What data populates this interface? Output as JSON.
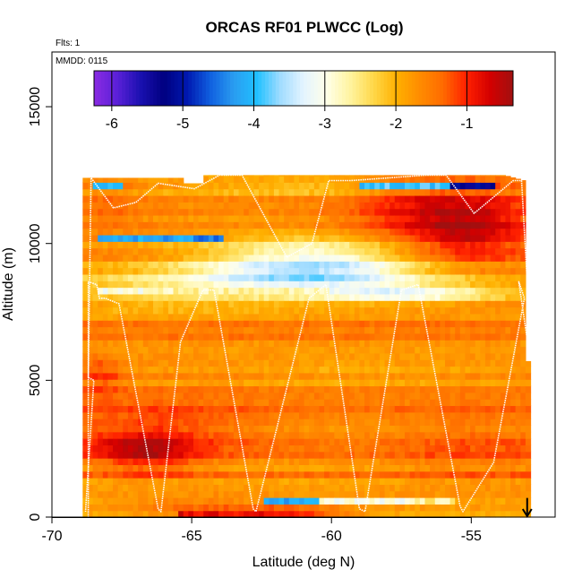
{
  "chart_data": {
    "type": "heatmap",
    "title": "ORCAS RF01 PLWCC (Log)",
    "annotations": [
      "Flts: 1",
      "MMDD: 0115"
    ],
    "xlabel": "Latitude (deg N)",
    "ylabel": "Altitude (m)",
    "xlim": [
      -70,
      -52
    ],
    "ylim": [
      0,
      17000
    ],
    "xticks": [
      -70,
      -65,
      -60,
      -55
    ],
    "xtick_labels": [
      "-70",
      "-65",
      "-60",
      "-55"
    ],
    "yticks": [
      0,
      5000,
      10000,
      15000
    ],
    "ytick_labels": [
      "0",
      "5000",
      "10000",
      "15000"
    ],
    "colorbar": {
      "min": -6.25,
      "max": -0.35,
      "ticks": [
        -6,
        -5,
        -4,
        -3,
        -2,
        -1
      ],
      "tick_labels": [
        "-6",
        "-5",
        "-4",
        "-3",
        "-2",
        "-1"
      ],
      "colors": [
        "#8a2be2",
        "#5a20d8",
        "#1a10b0",
        "#000080",
        "#0018b0",
        "#1060e0",
        "#2a9cf0",
        "#20c0ff",
        "#a0dcff",
        "#e4f4ff",
        "#ffffe8",
        "#fff4a0",
        "#ffd84a",
        "#ffb000",
        "#ff8c00",
        "#ff6a00",
        "#ff2000",
        "#d40000",
        "#a01010"
      ]
    },
    "field": {
      "background_value": -1.65,
      "coverage_top_altitude": [
        [
          -68.9,
          12400
        ],
        [
          -65.3,
          12400
        ],
        [
          -65.3,
          12200
        ],
        [
          -64.6,
          12200
        ],
        [
          -64.6,
          12500
        ],
        [
          -53.8,
          12500
        ],
        [
          -53.1,
          12300
        ],
        [
          -53.0,
          5700
        ],
        [
          -52.8,
          5700
        ],
        [
          -52.8,
          2300
        ],
        [
          -53.3,
          1700
        ],
        [
          -53.3,
          1100
        ],
        [
          -53.1,
          900
        ],
        [
          -53.1,
          0
        ]
      ],
      "coverage_left_altitude": [
        [
          -68.9,
          0
        ],
        [
          -68.9,
          12400
        ]
      ],
      "anomalies": [
        {
          "lat": -56.0,
          "alt": 11000,
          "lat_sigma": 2.2,
          "alt_sigma": 1300,
          "delta": 0.95
        },
        {
          "lat": -54.9,
          "alt": 10300,
          "lat_sigma": 1.3,
          "alt_sigma": 800,
          "delta": 0.45
        },
        {
          "lat": -60.5,
          "alt": 9300,
          "lat_sigma": 3.0,
          "alt_sigma": 650,
          "delta": -1.55
        },
        {
          "lat": -62.0,
          "alt": 8700,
          "lat_sigma": 5.5,
          "alt_sigma": 400,
          "delta": -0.9
        },
        {
          "lat": -57.0,
          "alt": 8150,
          "lat_sigma": 2.5,
          "alt_sigma": 220,
          "delta": -1.3
        },
        {
          "lat": -65.5,
          "alt": 8000,
          "lat_sigma": 3.5,
          "alt_sigma": 380,
          "delta": -0.55
        },
        {
          "lat": -66.7,
          "alt": 2400,
          "lat_sigma": 1.3,
          "alt_sigma": 550,
          "delta": 0.8
        },
        {
          "lat": -66.2,
          "alt": 3200,
          "lat_sigma": 2.8,
          "alt_sigma": 700,
          "delta": 0.45
        },
        {
          "lat": -68.2,
          "alt": 5200,
          "lat_sigma": 0.5,
          "alt_sigma": 500,
          "delta": 0.55
        },
        {
          "lat": -54.8,
          "alt": 2500,
          "lat_sigma": 2.0,
          "alt_sigma": 1000,
          "delta": 0.3
        },
        {
          "lat": -68.0,
          "alt": 11300,
          "lat_sigma": 0.8,
          "alt_sigma": 700,
          "delta": 0.25
        },
        {
          "lat": -60.0,
          "alt": 12100,
          "lat_sigma": 4.0,
          "alt_sigma": 200,
          "delta": -0.6
        },
        {
          "lat": -64.5,
          "alt": 400,
          "lat_sigma": 2.0,
          "alt_sigma": 250,
          "delta": 0.45
        },
        {
          "lat": -61.5,
          "alt": 150,
          "lat_sigma": 1.5,
          "alt_sigma": 150,
          "delta": 0.9
        },
        {
          "lat": -59.0,
          "alt": 5300,
          "lat_sigma": 3.5,
          "alt_sigma": 500,
          "delta": -0.2
        }
      ],
      "streaks": [
        {
          "lat0": -68.3,
          "lat1": -63.8,
          "alt0": 9980,
          "alt1": 10250,
          "value": -4.2,
          "color_taper": 0.6
        },
        {
          "lat0": -68.3,
          "lat1": -66.5,
          "alt0": 8100,
          "alt1": 8350,
          "value": -3.0,
          "color_taper": 0.0
        },
        {
          "lat0": -66.5,
          "lat1": -60.0,
          "alt0": 8100,
          "alt1": 8300,
          "value": -2.7,
          "color_taper": 0.0
        },
        {
          "lat0": -55.8,
          "lat1": -54.2,
          "alt0": 12000,
          "alt1": 12350,
          "value": -5.2,
          "color_taper": 0.0
        },
        {
          "lat0": -59.0,
          "lat1": -55.8,
          "alt0": 12000,
          "alt1": 12300,
          "value": -3.9,
          "color_taper": 0.0
        },
        {
          "lat0": -63.5,
          "lat1": -59.0,
          "alt0": 12150,
          "alt1": 12300,
          "value": -3.3,
          "color_taper": 0.0
        },
        {
          "lat0": -68.6,
          "lat1": -67.5,
          "alt0": 12050,
          "alt1": 12250,
          "value": -4.0,
          "color_taper": 0.0
        },
        {
          "lat0": -62.5,
          "lat1": -60.5,
          "alt0": 420,
          "alt1": 720,
          "value": -4.2,
          "color_taper": 0.0
        },
        {
          "lat0": -60.5,
          "lat1": -57.0,
          "alt0": 380,
          "alt1": 650,
          "value": -3.0,
          "color_taper": 0.0
        },
        {
          "lat0": -57.0,
          "lat1": -55.5,
          "alt0": 380,
          "alt1": 650,
          "value": -2.6,
          "color_taper": 0.0
        },
        {
          "lat0": -65.5,
          "lat1": -62.5,
          "alt0": 0,
          "alt1": 250,
          "value": -0.8,
          "color_taper": 0.0
        }
      ]
    },
    "flight_track": {
      "latitude": [
        -68.7,
        -68.7,
        -68.4,
        -68.3,
        -68.1,
        -67.6,
        -66.2,
        -66.1,
        -65.4,
        -64.6,
        -64.2,
        -62.8,
        -62.7,
        -60.8,
        -60.2,
        -59.0,
        -58.8,
        -57.5,
        -56.9,
        -55.4,
        -55.3,
        -54.2,
        -53.1,
        -53.3,
        -53.3,
        -52.9,
        -53.0,
        -53.2,
        -53.5,
        -54.9,
        -55.9,
        -56.6,
        -59.3,
        -60.1,
        -60.7,
        -61.6,
        -63.2,
        -64.0,
        -64.9,
        -66.2,
        -67.0,
        -67.8,
        -68.6,
        -68.7,
        -68.5,
        -68.8
      ],
      "altitude": [
        0,
        8600,
        8500,
        8000,
        8000,
        7800,
        300,
        200,
        6400,
        8300,
        8300,
        300,
        200,
        8000,
        8500,
        300,
        200,
        8300,
        8500,
        400,
        200,
        2000,
        8000,
        8600,
        8600,
        5800,
        8600,
        12300,
        12300,
        11100,
        12500,
        12500,
        12300,
        12300,
        10000,
        9500,
        12500,
        12500,
        12000,
        12200,
        11500,
        11300,
        12400,
        5100,
        5000,
        200
      ]
    },
    "arrow": {
      "latitude": -53.0,
      "altitude_top": 700,
      "altitude_bottom": 0
    }
  }
}
